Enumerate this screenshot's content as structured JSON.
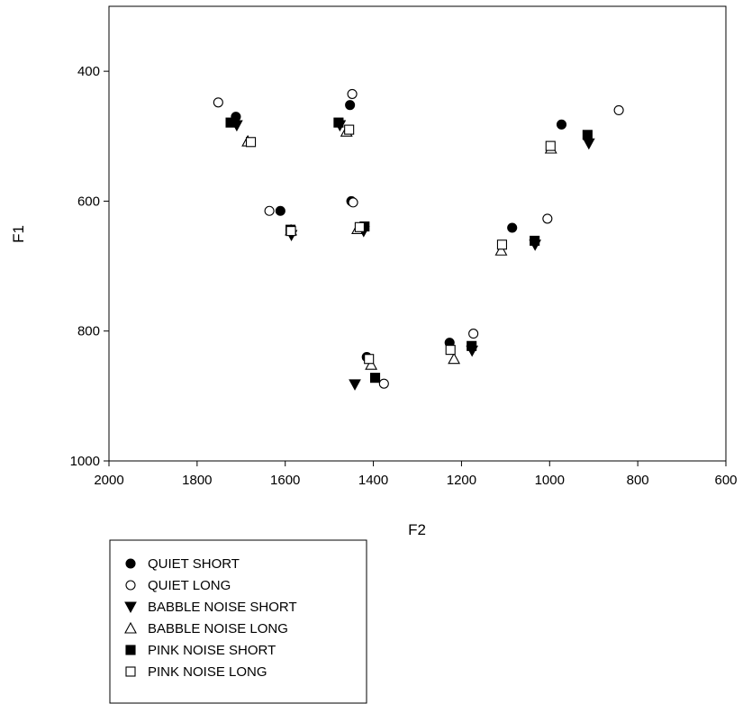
{
  "chart_data": {
    "type": "scatter",
    "xlabel": "F2",
    "ylabel": "F1",
    "xlim": [
      2000,
      600
    ],
    "ylim": [
      1000,
      300
    ],
    "x_reversed": true,
    "y_reversed": true,
    "xticks": [
      2000,
      1800,
      1600,
      1400,
      1200,
      1000,
      800,
      600
    ],
    "yticks": [
      400,
      600,
      800,
      1000
    ],
    "grid": false,
    "legend_position": "below",
    "series": [
      {
        "name": "QUIET SHORT",
        "marker": "filled-circle",
        "points": [
          [
            1712,
            470
          ],
          [
            1611,
            615
          ],
          [
            1453,
            452
          ],
          [
            1450,
            600
          ],
          [
            1415,
            840
          ],
          [
            1227,
            818
          ],
          [
            1085,
            641
          ],
          [
            973,
            482
          ]
        ]
      },
      {
        "name": "QUIET LONG",
        "marker": "open-circle",
        "points": [
          [
            1752,
            448
          ],
          [
            1636,
            615
          ],
          [
            1448,
            435
          ],
          [
            1446,
            602
          ],
          [
            1376,
            881
          ],
          [
            1173,
            804
          ],
          [
            1005,
            627
          ],
          [
            843,
            460
          ]
        ]
      },
      {
        "name": "BABBLE NOISE SHORT",
        "marker": "filled-triangle-down",
        "points": [
          [
            1710,
            483
          ],
          [
            1586,
            652
          ],
          [
            1476,
            483
          ],
          [
            1422,
            646
          ],
          [
            1442,
            882
          ],
          [
            1176,
            830
          ],
          [
            1033,
            667
          ],
          [
            911,
            511
          ]
        ]
      },
      {
        "name": "BABBLE NOISE LONG",
        "marker": "open-triangle-up",
        "points": [
          [
            1685,
            508
          ],
          [
            1587,
            645
          ],
          [
            1461,
            493
          ],
          [
            1436,
            643
          ],
          [
            1405,
            852
          ],
          [
            1217,
            843
          ],
          [
            1110,
            676
          ],
          [
            997,
            519
          ]
        ]
      },
      {
        "name": "PINK NOISE SHORT",
        "marker": "filled-square",
        "points": [
          [
            1724,
            479
          ],
          [
            1588,
            644
          ],
          [
            1479,
            479
          ],
          [
            1420,
            639
          ],
          [
            1396,
            872
          ],
          [
            1177,
            823
          ],
          [
            1034,
            661
          ],
          [
            914,
            498
          ]
        ]
      },
      {
        "name": "PINK NOISE LONG",
        "marker": "open-square",
        "points": [
          [
            1678,
            509
          ],
          [
            1587,
            646
          ],
          [
            1455,
            490
          ],
          [
            1431,
            640
          ],
          [
            1410,
            843
          ],
          [
            1225,
            829
          ],
          [
            1108,
            667
          ],
          [
            998,
            515
          ]
        ]
      }
    ]
  }
}
